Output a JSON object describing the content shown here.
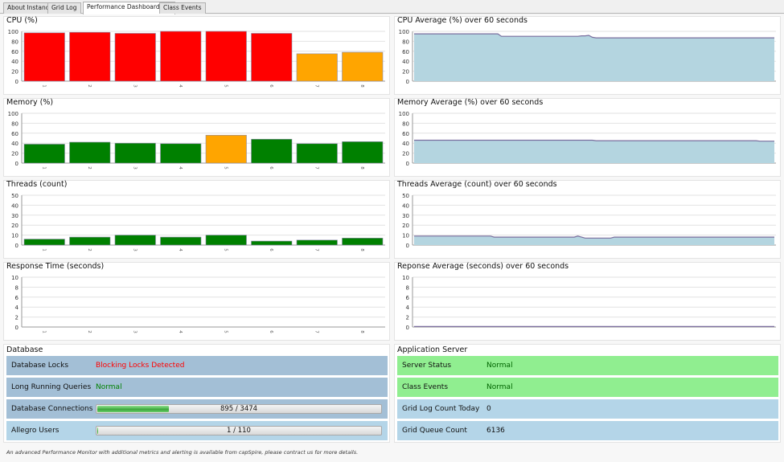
{
  "tabs": [
    {
      "label": "About Instance",
      "active": false
    },
    {
      "label": "Grid Log",
      "active": false
    },
    {
      "label": "Performance Dashboard",
      "active": true
    },
    {
      "label": "Class Events",
      "active": false
    }
  ],
  "colors": {
    "red": "#ff0000",
    "orange": "#ffa500",
    "green": "#008000",
    "area_fill": "#b4d5e0",
    "area_line": "#7a6e9e"
  },
  "chart_data": [
    {
      "type": "bar",
      "title": "CPU (%)",
      "categories": [
        "1",
        "2",
        "3",
        "4",
        "5",
        "6",
        "7",
        "8"
      ],
      "values": [
        97,
        98,
        96,
        100,
        100,
        96,
        55,
        58
      ],
      "bar_colors": [
        "#ff0000",
        "#ff0000",
        "#ff0000",
        "#ff0000",
        "#ff0000",
        "#ff0000",
        "#ffa500",
        "#ffa500"
      ],
      "yticks": [
        0,
        20,
        40,
        60,
        80,
        100
      ],
      "ylim": [
        0,
        100
      ]
    },
    {
      "type": "area",
      "title": "CPU Average (%) over 60 seconds",
      "values": [
        95,
        95,
        95,
        95,
        95,
        95,
        95,
        95,
        95,
        95,
        95,
        95,
        95,
        95,
        95,
        95,
        95,
        95,
        95,
        95,
        95,
        95,
        95,
        95,
        90,
        90,
        90,
        90,
        90,
        90,
        90,
        90,
        90,
        90,
        90,
        90,
        90,
        90,
        90,
        90,
        90,
        90,
        90,
        90,
        90,
        90,
        91,
        91,
        92,
        88,
        87,
        87,
        87,
        87,
        87,
        87,
        87,
        87,
        87,
        87,
        87,
        87,
        87,
        87,
        87,
        87,
        87,
        87,
        87,
        87,
        87,
        87,
        87,
        87,
        87,
        87,
        87,
        87,
        87,
        87,
        87,
        87,
        87,
        87,
        87,
        87,
        87,
        87,
        87,
        87,
        87,
        87,
        87,
        87,
        87,
        87,
        87,
        87,
        87,
        87
      ],
      "yticks": [
        0,
        20,
        40,
        60,
        80,
        100
      ],
      "ylim": [
        0,
        100
      ]
    },
    {
      "type": "bar",
      "title": "Memory (%)",
      "categories": [
        "1",
        "2",
        "3",
        "4",
        "5",
        "6",
        "7",
        "8"
      ],
      "values": [
        38,
        42,
        40,
        39,
        56,
        48,
        39,
        43
      ],
      "bar_colors": [
        "#008000",
        "#008000",
        "#008000",
        "#008000",
        "#ffa500",
        "#008000",
        "#008000",
        "#008000"
      ],
      "yticks": [
        0,
        20,
        40,
        60,
        80,
        100
      ],
      "ylim": [
        0,
        100
      ]
    },
    {
      "type": "area",
      "title": "Memory Average (%) over 60 seconds",
      "values": [
        46,
        46,
        46,
        46,
        46,
        46,
        46,
        46,
        46,
        46,
        46,
        46,
        46,
        46,
        46,
        46,
        46,
        46,
        46,
        46,
        46,
        46,
        46,
        46,
        46,
        46,
        46,
        46,
        46,
        46,
        46,
        46,
        46,
        46,
        46,
        46,
        46,
        46,
        46,
        46,
        46,
        46,
        46,
        46,
        46,
        46,
        46,
        46,
        46,
        46,
        45,
        45,
        45,
        45,
        45,
        45,
        45,
        45,
        45,
        45,
        45,
        45,
        45,
        45,
        45,
        45,
        45,
        45,
        45,
        45,
        45,
        45,
        45,
        45,
        45,
        45,
        45,
        45,
        45,
        45,
        45,
        45,
        45,
        45,
        45,
        45,
        45,
        45,
        45,
        45,
        45,
        45,
        45,
        45,
        45,
        44,
        44,
        44,
        44,
        44
      ],
      "yticks": [
        0,
        20,
        40,
        60,
        80,
        100
      ],
      "ylim": [
        0,
        100
      ]
    },
    {
      "type": "bar",
      "title": "Threads (count)",
      "categories": [
        "1",
        "2",
        "3",
        "4",
        "5",
        "6",
        "7",
        "8"
      ],
      "values": [
        6,
        8,
        10,
        8,
        10,
        4,
        5,
        7
      ],
      "bar_colors": [
        "#008000",
        "#008000",
        "#008000",
        "#008000",
        "#008000",
        "#008000",
        "#008000",
        "#008000"
      ],
      "yticks": [
        0,
        10,
        20,
        30,
        40,
        50
      ],
      "ylim": [
        0,
        50
      ]
    },
    {
      "type": "area",
      "title": "Threads Average (count) over 60 seconds",
      "values": [
        9,
        9,
        9,
        9,
        9,
        9,
        9,
        9,
        9,
        9,
        9,
        9,
        9,
        9,
        9,
        9,
        9,
        9,
        9,
        9,
        9,
        9,
        8,
        8,
        8,
        8,
        8,
        8,
        8,
        8,
        8,
        8,
        8,
        8,
        8,
        8,
        8,
        8,
        8,
        8,
        8,
        8,
        8,
        8,
        8,
        9,
        8,
        7,
        7,
        7,
        7,
        7,
        7,
        7,
        7,
        8,
        8,
        8,
        8,
        8,
        8,
        8,
        8,
        8,
        8,
        8,
        8,
        8,
        8,
        8,
        8,
        8,
        8,
        8,
        8,
        8,
        8,
        8,
        8,
        8,
        8,
        8,
        8,
        8,
        8,
        8,
        8,
        8,
        8,
        8,
        8,
        8,
        8,
        8,
        8,
        8,
        8,
        8,
        8,
        8
      ],
      "yticks": [
        0,
        10,
        20,
        30,
        40,
        50
      ],
      "ylim": [
        0,
        50
      ]
    },
    {
      "type": "bar",
      "title": "Response Time (seconds)",
      "categories": [
        "1",
        "2",
        "3",
        "4",
        "5",
        "6",
        "7",
        "8"
      ],
      "values": [
        0,
        0,
        0,
        0,
        0,
        0,
        0,
        0
      ],
      "bar_colors": [
        "#008000",
        "#008000",
        "#008000",
        "#008000",
        "#008000",
        "#008000",
        "#008000",
        "#008000"
      ],
      "yticks": [
        0,
        2,
        4,
        6,
        8,
        10
      ],
      "ylim": [
        0,
        10
      ]
    },
    {
      "type": "area",
      "title": "Reponse Average (seconds) over 60 seconds",
      "values": [
        0.1,
        0.1,
        0.1,
        0.1,
        0.1,
        0.1,
        0.1,
        0.1,
        0.1,
        0.1,
        0.1,
        0.1,
        0.1,
        0.1,
        0.1,
        0.1,
        0.1,
        0.1,
        0.1,
        0.1,
        0.1,
        0.1,
        0.1,
        0.1,
        0.1,
        0.1,
        0.1,
        0.1,
        0.1,
        0.1,
        0.1,
        0.1,
        0.1,
        0.1,
        0.1,
        0.1,
        0.1,
        0.1,
        0.1,
        0.1,
        0.1,
        0.1,
        0.1,
        0.1,
        0.1,
        0.1,
        0.1,
        0.1,
        0.1,
        0.1,
        0.1,
        0.1,
        0.1,
        0.1,
        0.1,
        0.1,
        0.1,
        0.1,
        0.1,
        0.1,
        0.1,
        0.1,
        0.1,
        0.1,
        0.1,
        0.1,
        0.1,
        0.1,
        0.1,
        0.1,
        0.1,
        0.1,
        0.1,
        0.1,
        0.1,
        0.1,
        0.1,
        0.1,
        0.1,
        0.1,
        0.1,
        0.1,
        0.1,
        0.1,
        0.1,
        0.1,
        0.1,
        0.1,
        0.1,
        0.1,
        0.1,
        0.1,
        0.1,
        0.1,
        0.1,
        0.1,
        0.1,
        0.1,
        0.1,
        0.1
      ],
      "yticks": [
        0,
        2,
        4,
        6,
        8,
        10
      ],
      "ylim": [
        0,
        10
      ]
    }
  ],
  "database": {
    "title": "Database",
    "rows": [
      {
        "label": "Database Locks",
        "value": "Blocking Locks Detected",
        "value_color": "#ff0000",
        "bg": "#a3bfd6"
      },
      {
        "label": "Long Running Queries",
        "value": "Normal",
        "value_color": "#008000",
        "bg": "#a3bfd6"
      },
      {
        "label": "Database Connections",
        "bar_text": "895 / 3474",
        "fraction": 0.258,
        "bg": "#a3bfd6"
      },
      {
        "label": "Allegro Users",
        "bar_text": "1 / 110",
        "fraction": 0.009,
        "bg": "#b4d5e8"
      }
    ]
  },
  "appserver": {
    "title": "Application Server",
    "rows": [
      {
        "label": "Server Status",
        "value": "Normal",
        "value_color": "#006400",
        "bg": "#90ee90"
      },
      {
        "label": "Class Events",
        "value": "Normal",
        "value_color": "#006400",
        "bg": "#90ee90"
      },
      {
        "label": "Grid Log Count Today",
        "value": "0",
        "value_color": "#111111",
        "bg": "#b4d5e8"
      },
      {
        "label": "Grid Queue Count",
        "value": "6136",
        "value_color": "#111111",
        "bg": "#b4d5e8"
      }
    ]
  },
  "footer": "An advanced Performance Monitor with additional metrics and alerting is available from capSpire, please contract us for more details."
}
